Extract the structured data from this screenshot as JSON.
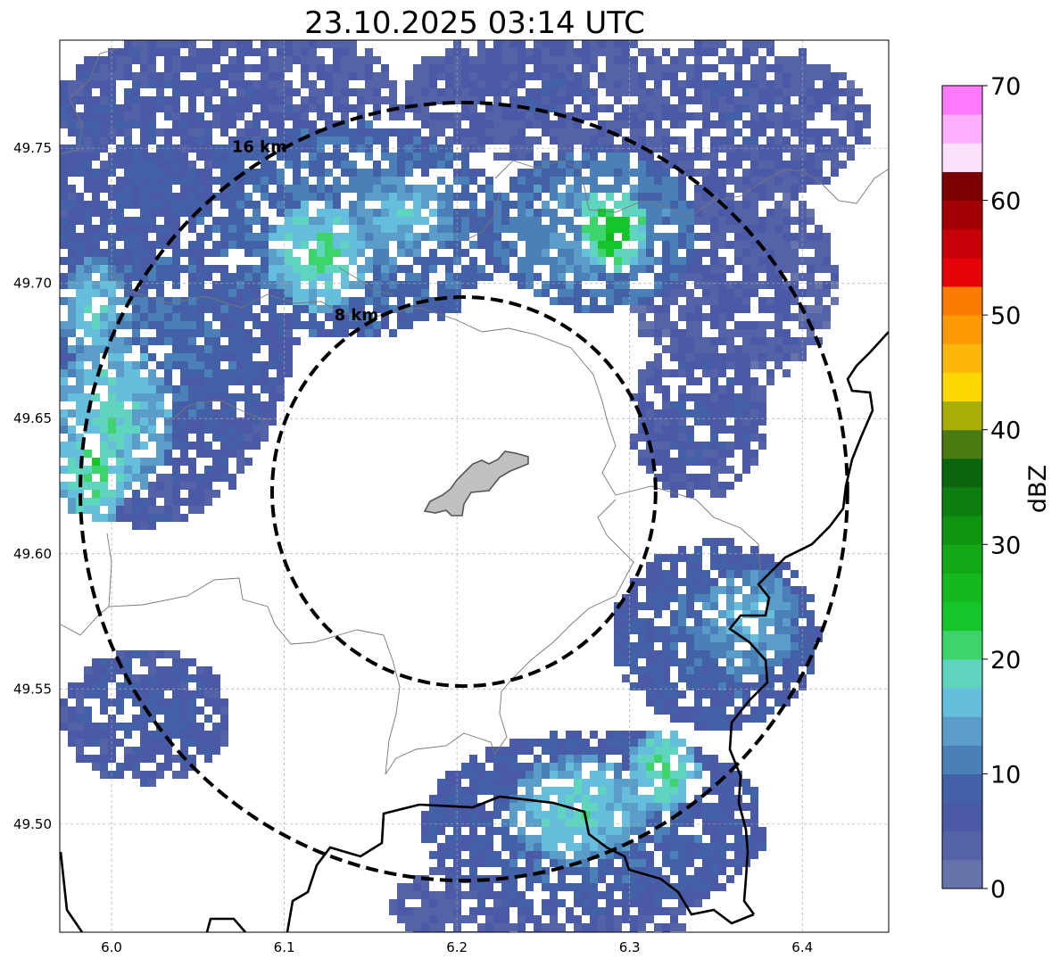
{
  "title": "23.10.2025 03:14 UTC",
  "map": {
    "lon_range": [
      5.97,
      6.45
    ],
    "lat_range": [
      49.46,
      49.79
    ],
    "x_ticks": [
      {
        "value": 6.0,
        "label": "6.0"
      },
      {
        "value": 6.1,
        "label": "6.1"
      },
      {
        "value": 6.2,
        "label": "6.2"
      },
      {
        "value": 6.3,
        "label": "6.3"
      },
      {
        "value": 6.4,
        "label": "6.4"
      }
    ],
    "y_ticks": [
      {
        "value": 49.5,
        "label": "49.50"
      },
      {
        "value": 49.55,
        "label": "49.55"
      },
      {
        "value": 49.6,
        "label": "49.60"
      },
      {
        "value": 49.65,
        "label": "49.65"
      },
      {
        "value": 49.7,
        "label": "49.70"
      },
      {
        "value": 49.75,
        "label": "49.75"
      }
    ],
    "grid": true,
    "radar_center": {
      "lon": 6.204,
      "lat": 49.623
    },
    "range_rings": [
      {
        "radius_km": 8,
        "label": "8 km"
      },
      {
        "radius_km": 16,
        "label": "16 km"
      }
    ],
    "echoes": [
      {
        "lon": 6.02,
        "lat": 49.7,
        "rlon": 0.09,
        "rlat": 0.09,
        "dbz": 8
      },
      {
        "lon": 6.08,
        "lat": 49.76,
        "rlon": 0.09,
        "rlat": 0.04,
        "dbz": 6
      },
      {
        "lon": 6.14,
        "lat": 49.72,
        "rlon": 0.09,
        "rlat": 0.04,
        "dbz": 12
      },
      {
        "lon": 6.03,
        "lat": 49.68,
        "rlon": 0.07,
        "rlat": 0.05,
        "dbz": 10
      },
      {
        "lon": 6.12,
        "lat": 49.71,
        "rlon": 0.03,
        "rlat": 0.02,
        "dbz": 21
      },
      {
        "lon": 6.17,
        "lat": 49.725,
        "rlon": 0.03,
        "rlat": 0.015,
        "dbz": 17
      },
      {
        "lon": 6.0,
        "lat": 49.65,
        "rlon": 0.035,
        "rlat": 0.03,
        "dbz": 19
      },
      {
        "lon": 5.99,
        "lat": 49.63,
        "rlon": 0.02,
        "rlat": 0.02,
        "dbz": 22
      },
      {
        "lon": 5.99,
        "lat": 49.69,
        "rlon": 0.02,
        "rlat": 0.02,
        "dbz": 18
      },
      {
        "lon": 6.25,
        "lat": 49.77,
        "rlon": 0.08,
        "rlat": 0.025,
        "dbz": 6
      },
      {
        "lon": 6.36,
        "lat": 49.76,
        "rlon": 0.08,
        "rlat": 0.03,
        "dbz": 6
      },
      {
        "lon": 6.36,
        "lat": 49.7,
        "rlon": 0.06,
        "rlat": 0.04,
        "dbz": 5
      },
      {
        "lon": 6.28,
        "lat": 49.72,
        "rlon": 0.06,
        "rlat": 0.03,
        "dbz": 14
      },
      {
        "lon": 6.29,
        "lat": 49.72,
        "rlon": 0.02,
        "rlat": 0.015,
        "dbz": 26
      },
      {
        "lon": 6.34,
        "lat": 49.65,
        "rlon": 0.04,
        "rlat": 0.03,
        "dbz": 7
      },
      {
        "lon": 6.35,
        "lat": 49.57,
        "rlon": 0.06,
        "rlat": 0.035,
        "dbz": 10
      },
      {
        "lon": 6.37,
        "lat": 49.575,
        "rlon": 0.03,
        "rlat": 0.02,
        "dbz": 16
      },
      {
        "lon": 6.02,
        "lat": 49.54,
        "rlon": 0.05,
        "rlat": 0.025,
        "dbz": 8
      },
      {
        "lon": 6.28,
        "lat": 49.5,
        "rlon": 0.1,
        "rlat": 0.035,
        "dbz": 10
      },
      {
        "lon": 6.27,
        "lat": 49.505,
        "rlon": 0.04,
        "rlat": 0.02,
        "dbz": 19
      },
      {
        "lon": 6.32,
        "lat": 49.52,
        "rlon": 0.02,
        "rlat": 0.015,
        "dbz": 22
      },
      {
        "lon": 6.25,
        "lat": 49.47,
        "rlon": 0.09,
        "rlat": 0.02,
        "dbz": 6
      }
    ]
  },
  "colorbar": {
    "label": "dBZ",
    "min": 0,
    "max": 70,
    "step": 2.5,
    "tick_labels": [
      {
        "value": 0,
        "label": "0"
      },
      {
        "value": 10,
        "label": "10"
      },
      {
        "value": 20,
        "label": "20"
      },
      {
        "value": 30,
        "label": "30"
      },
      {
        "value": 40,
        "label": "40"
      },
      {
        "value": 50,
        "label": "50"
      },
      {
        "value": 60,
        "label": "60"
      },
      {
        "value": 70,
        "label": "70"
      }
    ],
    "colors": [
      "#6674ab",
      "#5462a8",
      "#4a5aa6",
      "#4261a7",
      "#4b7fb8",
      "#5a9dc8",
      "#65bedc",
      "#5fd5c0",
      "#3dd46c",
      "#14c62a",
      "#14b91e",
      "#12a816",
      "#0f9410",
      "#0b7e0f",
      "#0a650d",
      "#4a7a10",
      "#a9ae04",
      "#fed600",
      "#fdb70a",
      "#fd9a04",
      "#fd7b01",
      "#e40308",
      "#c50006",
      "#a30005",
      "#7d0000",
      "#fee1fe",
      "#feb0fe",
      "#fe79fe",
      "#ea3cea"
    ]
  }
}
